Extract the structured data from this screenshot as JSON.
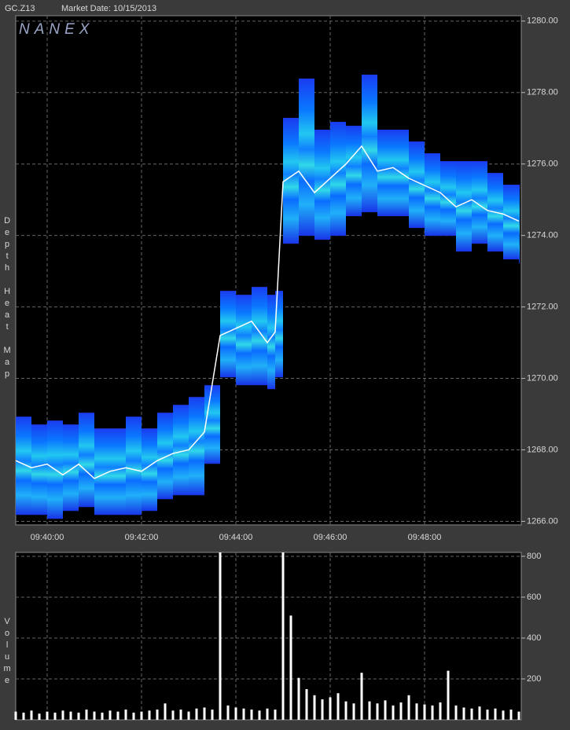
{
  "chart_data": [
    {
      "type": "heatmap",
      "title": "GC.Z13",
      "subtitle": "Market Date: 10/15/2013",
      "watermark": "NANEX",
      "ylabel": "Depth Heat Map",
      "x": [
        "09:39:20",
        "09:39:40",
        "09:40:00",
        "09:40:20",
        "09:40:40",
        "09:41:00",
        "09:41:20",
        "09:41:40",
        "09:42:00",
        "09:42:20",
        "09:42:40",
        "09:43:00",
        "09:43:20",
        "09:43:40",
        "09:44:00",
        "09:44:20",
        "09:44:40",
        "09:44:50",
        "09:45:00",
        "09:45:20",
        "09:45:40",
        "09:46:00",
        "09:46:20",
        "09:46:40",
        "09:47:00",
        "09:47:20",
        "09:47:40",
        "09:48:00",
        "09:48:20",
        "09:48:40",
        "09:49:00",
        "09:49:20",
        "09:49:40",
        "09:50:00"
      ],
      "values": [
        1267.7,
        1267.5,
        1267.6,
        1267.3,
        1267.6,
        1267.2,
        1267.4,
        1267.5,
        1267.4,
        1267.7,
        1267.9,
        1268.0,
        1268.5,
        1271.2,
        1271.4,
        1271.6,
        1271.0,
        1271.3,
        1275.5,
        1275.8,
        1275.2,
        1275.6,
        1276.0,
        1276.5,
        1275.8,
        1275.9,
        1275.6,
        1275.4,
        1275.2,
        1274.8,
        1275.0,
        1274.7,
        1274.6,
        1274.4
      ],
      "depth_high": [
        1268.93,
        1268.71,
        1268.82,
        1268.71,
        1269.04,
        1268.6,
        1268.6,
        1268.93,
        1268.6,
        1269.04,
        1269.26,
        1269.48,
        1269.81,
        1272.45,
        1272.34,
        1272.56,
        1272.34,
        1272.45,
        1277.29,
        1278.39,
        1276.96,
        1277.18,
        1277.07,
        1278.5,
        1276.96,
        1276.96,
        1276.63,
        1276.3,
        1276.08,
        1276.08,
        1276.08,
        1275.75,
        1275.42,
        1275.42
      ],
      "depth_low": [
        1266.18,
        1266.18,
        1266.07,
        1266.29,
        1266.4,
        1266.18,
        1266.18,
        1266.18,
        1266.29,
        1266.62,
        1266.73,
        1266.73,
        1267.61,
        1270.03,
        1269.81,
        1269.81,
        1269.7,
        1270.03,
        1273.77,
        1273.99,
        1273.88,
        1273.99,
        1274.54,
        1274.65,
        1274.54,
        1274.54,
        1274.21,
        1273.99,
        1273.99,
        1273.55,
        1273.77,
        1273.55,
        1273.33,
        1273.22
      ],
      "color": "#ffffff",
      "xlim": [
        "09:39:20",
        "09:50:03"
      ],
      "xticks": [
        "09:40:00",
        "09:42:00",
        "09:44:00",
        "09:46:00",
        "09:48:00"
      ],
      "ylim": [
        1265.9,
        1280.15
      ],
      "yticks": [
        {
          "value": 1266,
          "label": "1266.00"
        },
        {
          "value": 1268,
          "label": "1268.00"
        },
        {
          "value": 1270,
          "label": "1270.00"
        },
        {
          "value": 1272,
          "label": "1272.00"
        },
        {
          "value": 1274,
          "label": "1274.00"
        },
        {
          "value": 1276,
          "label": "1276.00"
        },
        {
          "value": 1278,
          "label": "1278.00"
        },
        {
          "value": 1280,
          "label": "1280.00"
        }
      ],
      "grid": true
    },
    {
      "type": "bar",
      "ylabel": "Volume",
      "x": [
        "09:39:20",
        "09:39:30",
        "09:39:40",
        "09:39:50",
        "09:40:00",
        "09:40:10",
        "09:40:20",
        "09:40:30",
        "09:40:40",
        "09:40:50",
        "09:41:00",
        "09:41:10",
        "09:41:20",
        "09:41:30",
        "09:41:40",
        "09:41:50",
        "09:42:00",
        "09:42:10",
        "09:42:20",
        "09:42:30",
        "09:42:40",
        "09:42:50",
        "09:43:00",
        "09:43:10",
        "09:43:20",
        "09:43:30",
        "09:43:40",
        "09:43:50",
        "09:44:00",
        "09:44:10",
        "09:44:20",
        "09:44:30",
        "09:44:40",
        "09:44:50",
        "09:45:00",
        "09:45:10",
        "09:45:20",
        "09:45:30",
        "09:45:40",
        "09:45:50",
        "09:46:00",
        "09:46:10",
        "09:46:20",
        "09:46:30",
        "09:46:40",
        "09:46:50",
        "09:47:00",
        "09:47:10",
        "09:47:20",
        "09:47:30",
        "09:47:40",
        "09:47:50",
        "09:48:00",
        "09:48:10",
        "09:48:20",
        "09:48:30",
        "09:48:40",
        "09:48:50",
        "09:49:00",
        "09:49:10",
        "09:49:20",
        "09:49:30",
        "09:49:40",
        "09:49:50",
        "09:50:00"
      ],
      "values": [
        40,
        35,
        45,
        30,
        40,
        35,
        45,
        40,
        35,
        50,
        40,
        35,
        45,
        40,
        50,
        35,
        40,
        45,
        50,
        80,
        45,
        50,
        40,
        55,
        60,
        50,
        819,
        70,
        60,
        55,
        50,
        45,
        55,
        50,
        819,
        510,
        205,
        150,
        120,
        100,
        110,
        130,
        90,
        80,
        230,
        90,
        80,
        95,
        70,
        85,
        120,
        80,
        75,
        70,
        85,
        240,
        70,
        60,
        55,
        65,
        50,
        55,
        45,
        50,
        40
      ],
      "color": "#ffffff",
      "xlim": [
        "09:39:20",
        "09:50:03"
      ],
      "xticks": [
        "09:40:00",
        "09:42:00",
        "09:44:00",
        "09:46:00",
        "09:48:00"
      ],
      "ylim": [
        0,
        819
      ],
      "yticks": [
        200,
        400,
        600,
        800
      ],
      "grid": true
    }
  ]
}
